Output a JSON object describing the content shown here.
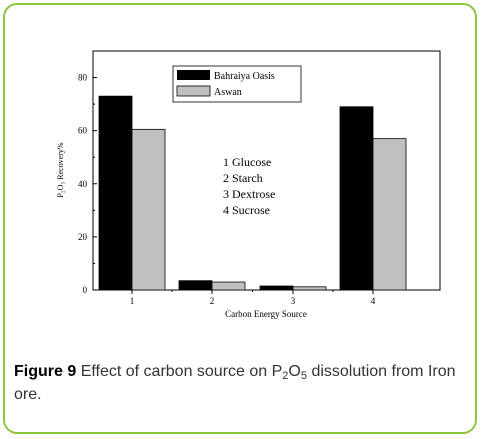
{
  "chart_data": {
    "type": "bar",
    "categories": [
      "1",
      "2",
      "3",
      "4"
    ],
    "series": [
      {
        "name": "Bahraiya Oasis",
        "color": "#000000",
        "values": [
          73,
          3.5,
          1.5,
          69
        ]
      },
      {
        "name": "Aswan",
        "color": "#c0c0c0",
        "values": [
          60.5,
          3,
          1.2,
          57
        ]
      }
    ],
    "xlabel": "Carbon Energy Source",
    "ylabel": "P₂O₅ Recovery%",
    "ylim": [
      0,
      90
    ],
    "yticks": [
      "0",
      "20",
      "40",
      "60",
      "80"
    ],
    "grid": false,
    "legend_position": "top-center",
    "annotations": [
      "1 Glucose",
      "2 Starch",
      "3 Dextrose",
      "4 Sucrose"
    ]
  },
  "caption": {
    "label": "Figure 9",
    "text_before": "Effect of carbon source on P",
    "sub1": "2",
    "text_mid": "O",
    "sub2": "5",
    "text_after": " dissolution from Iron ore."
  }
}
